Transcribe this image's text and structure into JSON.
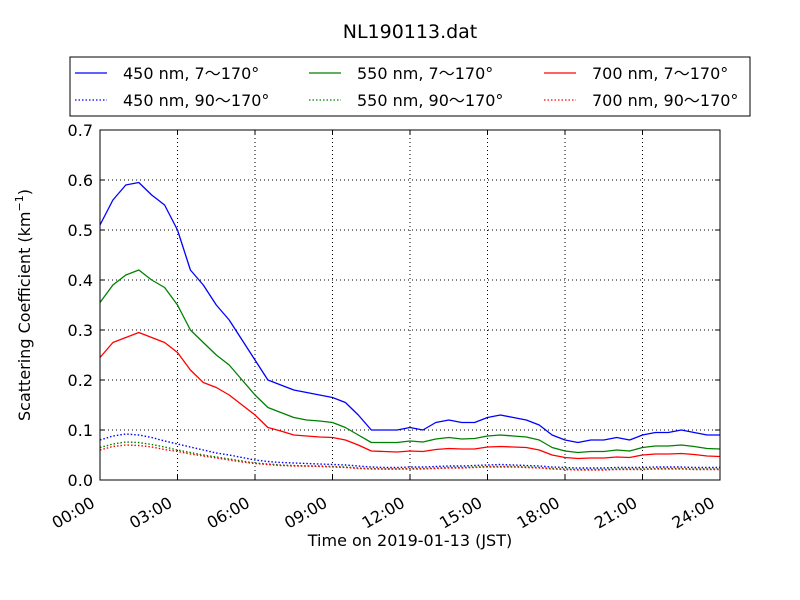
{
  "chart_data": {
    "type": "line",
    "title": "NL190113.dat",
    "xlabel": "Time on 2019-01-13 (JST)",
    "ylabel": "Scattering Coefficient (km",
    "ylabel_sup": "−1",
    "ylabel_close": ")",
    "xlim": [
      0,
      24
    ],
    "ylim": [
      0,
      0.7
    ],
    "x_ticks": [
      0,
      3,
      6,
      9,
      12,
      15,
      18,
      21,
      24
    ],
    "x_tick_labels": [
      "00:00",
      "03:00",
      "06:00",
      "09:00",
      "12:00",
      "15:00",
      "18:00",
      "21:00",
      "24:00"
    ],
    "y_ticks": [
      0,
      0.1,
      0.2,
      0.3,
      0.4,
      0.5,
      0.6,
      0.7
    ],
    "y_tick_labels": [
      "0.0",
      "0.1",
      "0.2",
      "0.3",
      "0.4",
      "0.5",
      "0.6",
      "0.7"
    ],
    "grid": true,
    "legend_position": "top (above plot, 3 columns)",
    "x": [
      0,
      0.5,
      1,
      1.5,
      2,
      2.5,
      3,
      3.5,
      4,
      4.5,
      5,
      5.5,
      6,
      6.5,
      7,
      7.5,
      8,
      8.5,
      9,
      9.5,
      10,
      10.5,
      11,
      11.5,
      12,
      12.5,
      13,
      13.5,
      14,
      14.5,
      15,
      15.5,
      16,
      16.5,
      17,
      17.5,
      18,
      18.5,
      19,
      19.5,
      20,
      20.5,
      21,
      21.5,
      22,
      22.5,
      23,
      23.5,
      24
    ],
    "series": [
      {
        "name": "450 nm, 7～170°",
        "color": "#0000ff",
        "style": "solid",
        "values": [
          0.51,
          0.56,
          0.59,
          0.595,
          0.57,
          0.55,
          0.5,
          0.42,
          0.39,
          0.35,
          0.32,
          0.28,
          0.24,
          0.2,
          0.19,
          0.18,
          0.175,
          0.17,
          0.165,
          0.155,
          0.13,
          0.1,
          0.1,
          0.1,
          0.105,
          0.1,
          0.115,
          0.12,
          0.115,
          0.115,
          0.125,
          0.13,
          0.125,
          0.12,
          0.11,
          0.09,
          0.08,
          0.075,
          0.08,
          0.08,
          0.085,
          0.08,
          0.09,
          0.095,
          0.095,
          0.1,
          0.095,
          0.09,
          0.09
        ]
      },
      {
        "name": "450 nm, 90～170°",
        "color": "#0000ff",
        "style": "dotted",
        "values": [
          0.08,
          0.088,
          0.092,
          0.09,
          0.085,
          0.078,
          0.072,
          0.066,
          0.06,
          0.054,
          0.05,
          0.045,
          0.04,
          0.037,
          0.035,
          0.034,
          0.033,
          0.032,
          0.031,
          0.03,
          0.028,
          0.026,
          0.025,
          0.025,
          0.026,
          0.026,
          0.027,
          0.028,
          0.028,
          0.029,
          0.03,
          0.031,
          0.03,
          0.029,
          0.028,
          0.026,
          0.025,
          0.024,
          0.024,
          0.024,
          0.025,
          0.025,
          0.025,
          0.026,
          0.026,
          0.026,
          0.025,
          0.025,
          0.025
        ]
      },
      {
        "name": "550 nm, 7～170°",
        "color": "#008000",
        "style": "solid",
        "values": [
          0.355,
          0.39,
          0.41,
          0.42,
          0.4,
          0.385,
          0.35,
          0.3,
          0.275,
          0.25,
          0.23,
          0.2,
          0.17,
          0.145,
          0.135,
          0.125,
          0.12,
          0.118,
          0.115,
          0.105,
          0.09,
          0.075,
          0.075,
          0.075,
          0.078,
          0.076,
          0.082,
          0.085,
          0.082,
          0.083,
          0.088,
          0.09,
          0.088,
          0.086,
          0.08,
          0.065,
          0.058,
          0.055,
          0.057,
          0.057,
          0.06,
          0.058,
          0.065,
          0.068,
          0.068,
          0.07,
          0.067,
          0.063,
          0.062
        ]
      },
      {
        "name": "550 nm, 90～170°",
        "color": "#008000",
        "style": "dotted",
        "values": [
          0.065,
          0.072,
          0.076,
          0.075,
          0.071,
          0.066,
          0.06,
          0.055,
          0.05,
          0.046,
          0.042,
          0.038,
          0.034,
          0.032,
          0.03,
          0.029,
          0.028,
          0.028,
          0.027,
          0.026,
          0.024,
          0.023,
          0.022,
          0.022,
          0.023,
          0.023,
          0.024,
          0.025,
          0.025,
          0.026,
          0.027,
          0.027,
          0.027,
          0.026,
          0.025,
          0.023,
          0.022,
          0.021,
          0.021,
          0.021,
          0.022,
          0.022,
          0.022,
          0.023,
          0.023,
          0.023,
          0.022,
          0.022,
          0.022
        ]
      },
      {
        "name": "700 nm, 7～170°",
        "color": "#ff0000",
        "style": "solid",
        "values": [
          0.245,
          0.275,
          0.285,
          0.295,
          0.285,
          0.275,
          0.255,
          0.22,
          0.195,
          0.185,
          0.17,
          0.15,
          0.13,
          0.105,
          0.098,
          0.09,
          0.088,
          0.086,
          0.085,
          0.08,
          0.07,
          0.058,
          0.057,
          0.056,
          0.058,
          0.057,
          0.061,
          0.063,
          0.062,
          0.062,
          0.066,
          0.067,
          0.066,
          0.065,
          0.06,
          0.05,
          0.045,
          0.043,
          0.044,
          0.044,
          0.046,
          0.045,
          0.05,
          0.052,
          0.052,
          0.053,
          0.051,
          0.048,
          0.047
        ]
      },
      {
        "name": "700 nm, 90～170°",
        "color": "#ff0000",
        "style": "dotted",
        "values": [
          0.06,
          0.067,
          0.07,
          0.069,
          0.066,
          0.061,
          0.057,
          0.052,
          0.048,
          0.044,
          0.04,
          0.036,
          0.033,
          0.031,
          0.029,
          0.028,
          0.028,
          0.027,
          0.026,
          0.025,
          0.023,
          0.022,
          0.022,
          0.022,
          0.022,
          0.022,
          0.023,
          0.024,
          0.024,
          0.025,
          0.026,
          0.026,
          0.026,
          0.025,
          0.024,
          0.022,
          0.021,
          0.02,
          0.02,
          0.02,
          0.021,
          0.021,
          0.021,
          0.022,
          0.022,
          0.022,
          0.021,
          0.021,
          0.021
        ]
      }
    ]
  }
}
